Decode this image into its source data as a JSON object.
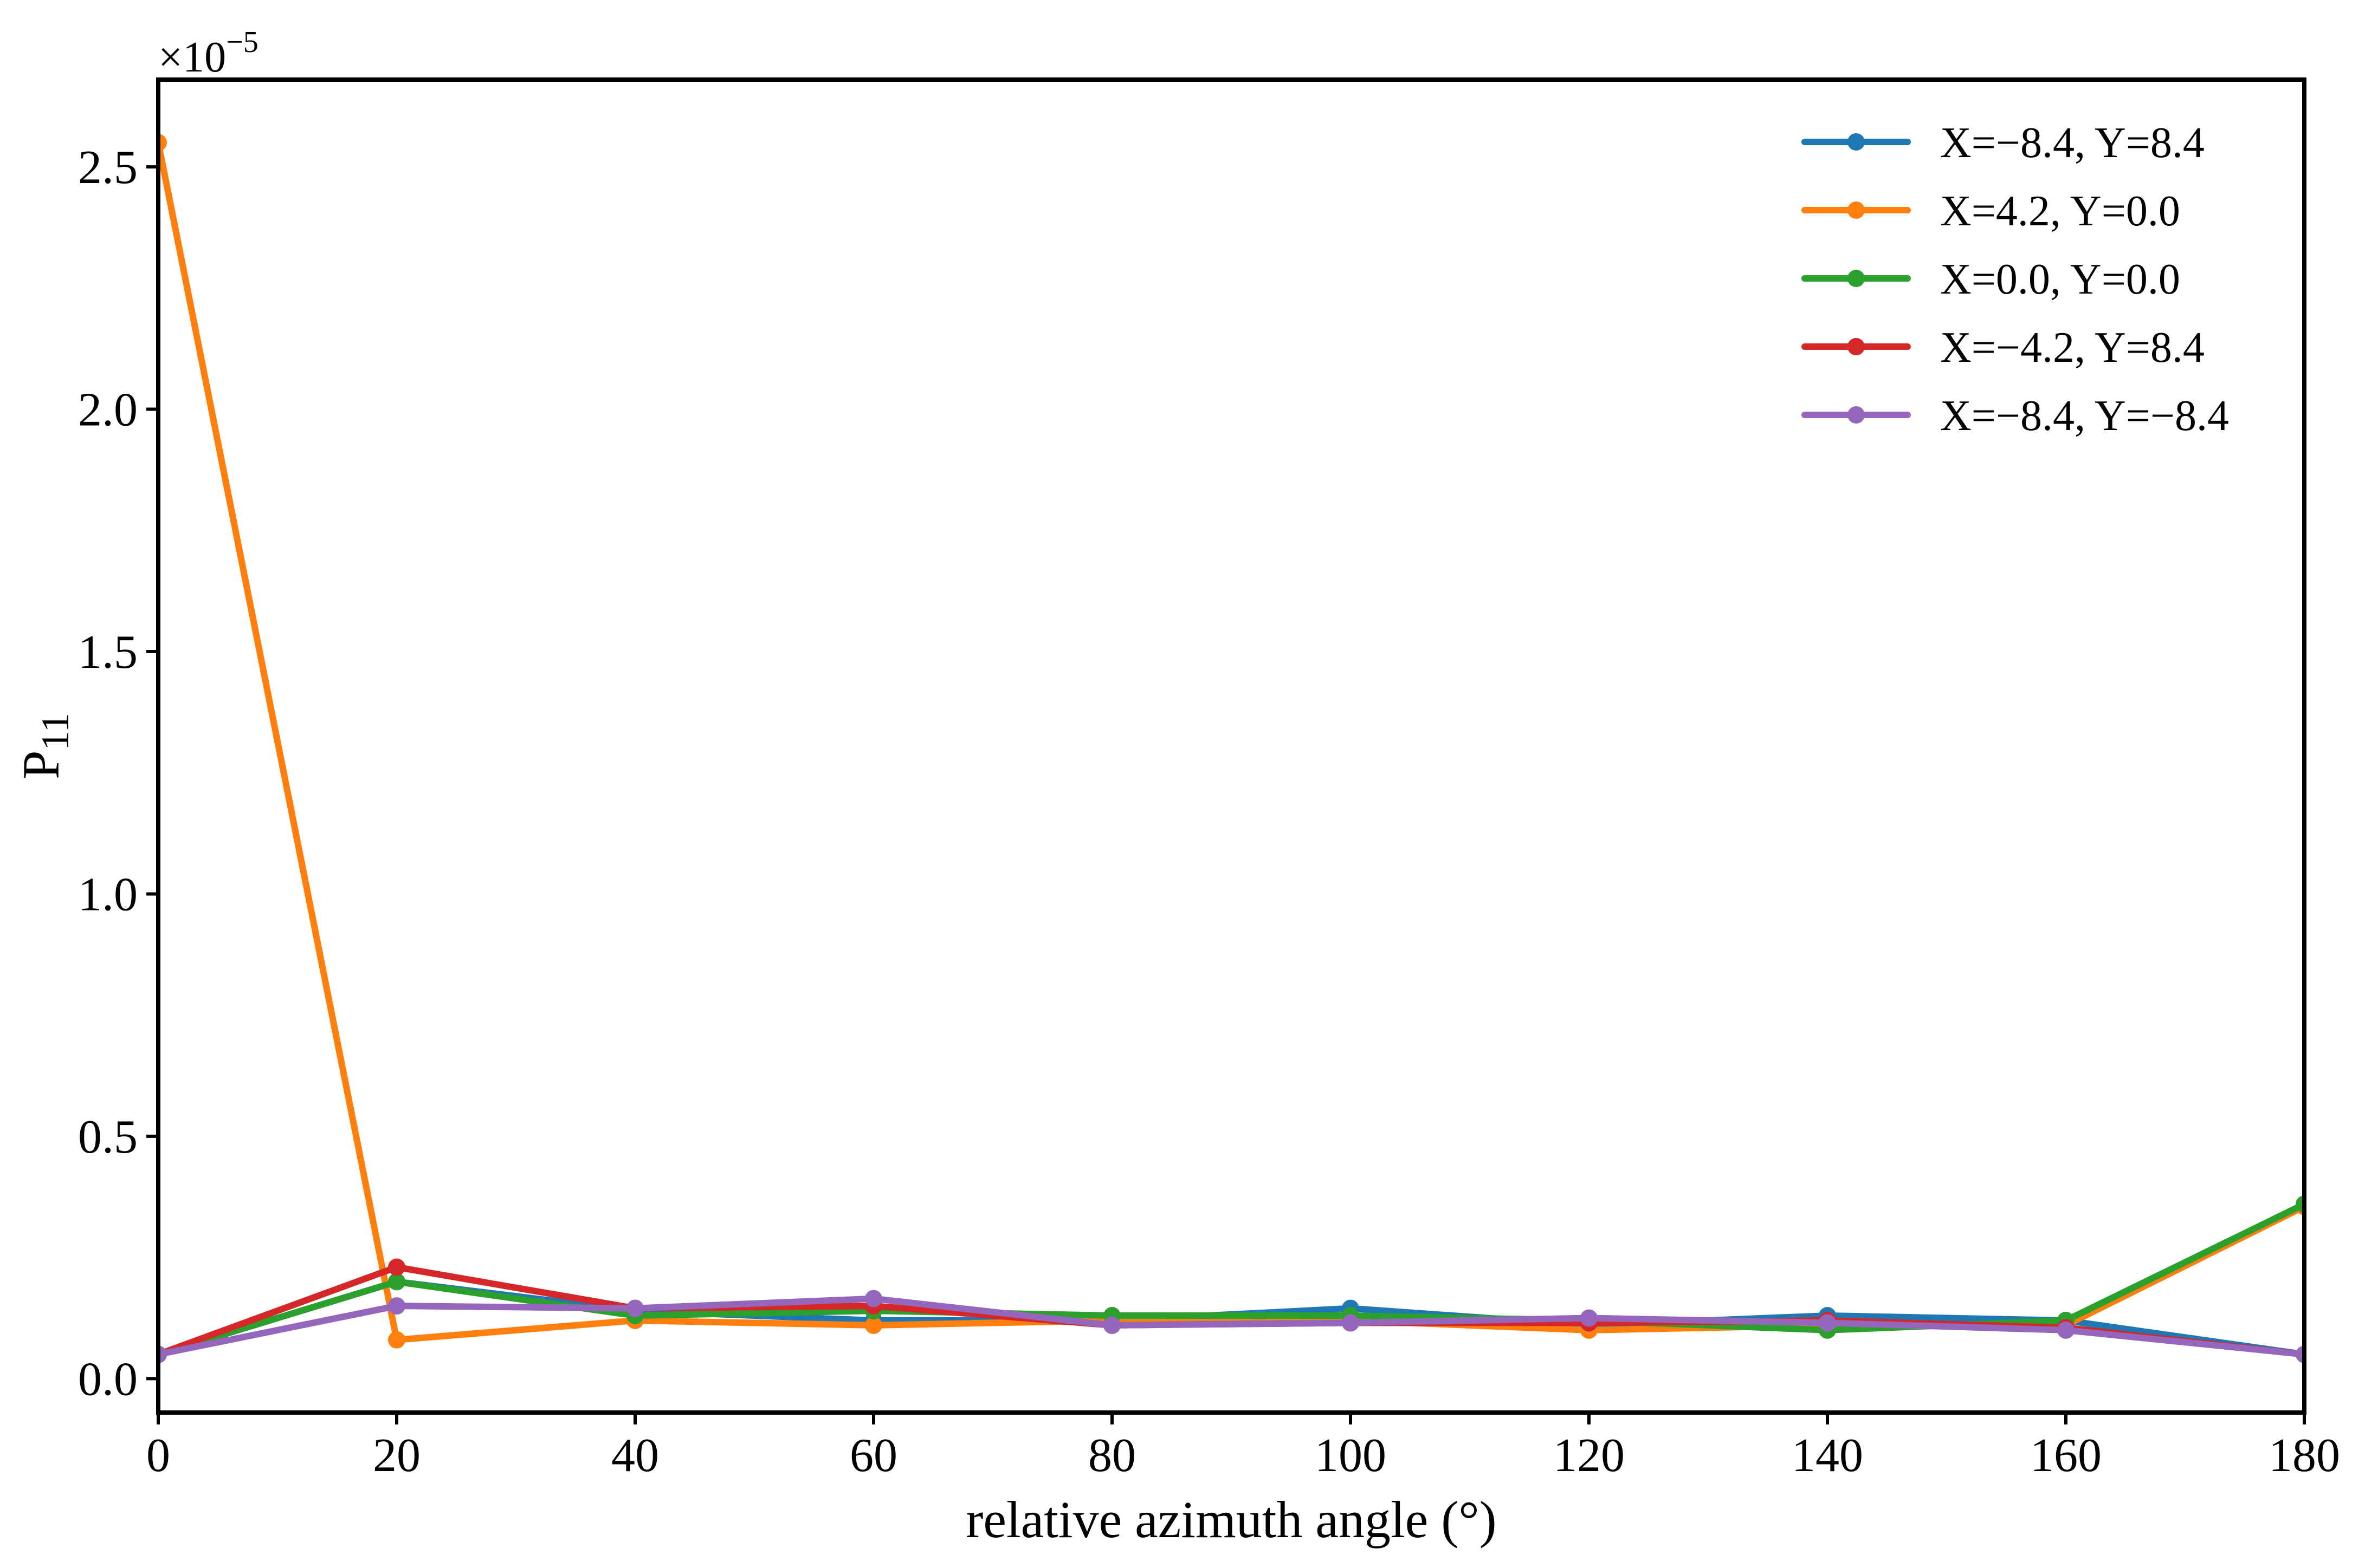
{
  "chart_data": {
    "type": "line",
    "title": "",
    "xlabel": "relative azimuth angle (°)",
    "ylabel_main": "P",
    "ylabel_sub": "11",
    "y_scale_base": "×10",
    "y_scale_exponent": "−5",
    "xlim": [
      0,
      180
    ],
    "ylim": [
      -0.07,
      2.68
    ],
    "x_ticks": [
      0,
      20,
      40,
      60,
      80,
      100,
      120,
      140,
      160,
      180
    ],
    "x_tick_labels": [
      "0",
      "20",
      "40",
      "60",
      "80",
      "100",
      "120",
      "140",
      "160",
      "180"
    ],
    "y_ticks": [
      0.0,
      0.5,
      1.0,
      1.5,
      2.0,
      2.5
    ],
    "y_tick_labels": [
      "0.0",
      "0.5",
      "1.0",
      "1.5",
      "2.0",
      "2.5"
    ],
    "grid": false,
    "legend_position": "top-right",
    "x": [
      0,
      20,
      40,
      60,
      80,
      100,
      120,
      140,
      160,
      180
    ],
    "series": [
      {
        "name": "X=−8.4, Y=8.4",
        "color": "#1f77b4",
        "values": [
          0.05,
          0.2,
          0.14,
          0.12,
          0.12,
          0.145,
          0.11,
          0.13,
          0.12,
          0.05
        ]
      },
      {
        "name": "X=4.2, Y=0.0",
        "color": "#ff7f0e",
        "values": [
          2.55,
          0.08,
          0.12,
          0.11,
          0.12,
          0.12,
          0.1,
          0.11,
          0.11,
          0.355
        ]
      },
      {
        "name": "X=0.0, Y=0.0",
        "color": "#2ca02c",
        "values": [
          0.05,
          0.2,
          0.13,
          0.14,
          0.13,
          0.13,
          0.12,
          0.1,
          0.12,
          0.36
        ]
      },
      {
        "name": "X=−4.2, Y=8.4",
        "color": "#d62728",
        "values": [
          0.05,
          0.23,
          0.145,
          0.15,
          0.11,
          0.115,
          0.115,
          0.12,
          0.105,
          0.05
        ]
      },
      {
        "name": "X=−8.4, Y=−8.4",
        "color": "#9467bd",
        "values": [
          0.05,
          0.15,
          0.145,
          0.165,
          0.11,
          0.115,
          0.125,
          0.115,
          0.1,
          0.05
        ]
      }
    ]
  }
}
